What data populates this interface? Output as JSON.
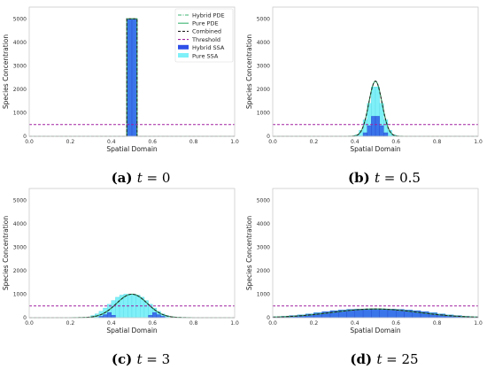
{
  "chart_data": [
    {
      "type": "bar",
      "caption": {
        "label": "(a)",
        "var": "t",
        "eq": "= 0"
      },
      "xlabel": "Spatial Domain",
      "ylabel": "Species Concentration",
      "xlim": [
        0.0,
        1.0
      ],
      "ylim": [
        0,
        5500
      ],
      "xticks": [
        "0.0",
        "0.2",
        "0.4",
        "0.6",
        "0.8",
        "1.0"
      ],
      "yticks": [
        "0",
        "1000",
        "2000",
        "3000",
        "4000",
        "5000"
      ],
      "threshold": 500,
      "hybrid_pde": {
        "peak": 5000,
        "sigma": 0,
        "floor": 0
      },
      "hybrid_ssa_cells": [
        [
          0.475,
          0.5,
          5000
        ],
        [
          0.5,
          0.525,
          5000
        ]
      ],
      "pure_ssa_cells": [
        [
          0.475,
          0.5,
          5000
        ],
        [
          0.5,
          0.525,
          5000
        ]
      ],
      "legend": {
        "position": "top-right",
        "entries": [
          {
            "label": "Hybrid PDE",
            "color": "#3cb371",
            "style": "dashdot"
          },
          {
            "label": "Pure PDE",
            "color": "#3cb371",
            "style": "solid"
          },
          {
            "label": "Combined",
            "color": "#222222",
            "style": "dashed"
          },
          {
            "label": "Threshold",
            "color": "#a020a0",
            "style": "dashed"
          },
          {
            "label": "Hybrid SSA",
            "color": "#2f4fe8",
            "style": "patch"
          },
          {
            "label": "Pure SSA",
            "color": "#7ff0f8",
            "style": "patch"
          }
        ]
      }
    },
    {
      "type": "bar",
      "caption": {
        "label": "(b)",
        "var": "t",
        "eq": "= 0.5"
      },
      "xlabel": "Spatial Domain",
      "ylabel": "Species Concentration",
      "xlim": [
        0.0,
        1.0
      ],
      "ylim": [
        0,
        5500
      ],
      "xticks": [
        "0.0",
        "0.2",
        "0.4",
        "0.6",
        "0.8",
        "1.0"
      ],
      "yticks": [
        "0",
        "1000",
        "2000",
        "3000",
        "4000",
        "5000"
      ],
      "threshold": 500,
      "hybrid_pde": {
        "peak": 2350,
        "sigma": 0.032,
        "floor": 0
      },
      "hybrid_ssa_cells": [
        [
          0.44,
          0.46,
          150
        ],
        [
          0.46,
          0.48,
          450
        ],
        [
          0.48,
          0.5,
          850
        ],
        [
          0.5,
          0.52,
          850
        ],
        [
          0.52,
          0.54,
          450
        ],
        [
          0.54,
          0.56,
          150
        ]
      ],
      "pure_ssa_cells": [
        [
          0.4,
          0.42,
          60
        ],
        [
          0.42,
          0.44,
          250
        ],
        [
          0.44,
          0.46,
          700
        ],
        [
          0.46,
          0.48,
          1400
        ],
        [
          0.48,
          0.5,
          2100
        ],
        [
          0.5,
          0.52,
          2100
        ],
        [
          0.52,
          0.54,
          1400
        ],
        [
          0.54,
          0.56,
          700
        ],
        [
          0.56,
          0.58,
          250
        ],
        [
          0.58,
          0.6,
          60
        ]
      ]
    },
    {
      "type": "bar",
      "caption": {
        "label": "(c)",
        "var": "t",
        "eq": "= 3"
      },
      "xlabel": "Spatial Domain",
      "ylabel": "Species Concentration",
      "xlim": [
        0.0,
        1.0
      ],
      "ylim": [
        0,
        5500
      ],
      "xticks": [
        "0.0",
        "0.2",
        "0.4",
        "0.6",
        "0.8",
        "1.0"
      ],
      "yticks": [
        "0",
        "1000",
        "2000",
        "3000",
        "4000",
        "5000"
      ],
      "threshold": 500,
      "hybrid_pde": {
        "peak": 1000,
        "sigma": 0.075,
        "floor": 0
      },
      "hybrid_ssa_cells": [
        [
          0.34,
          0.36,
          60
        ],
        [
          0.36,
          0.38,
          130
        ],
        [
          0.38,
          0.4,
          220
        ],
        [
          0.4,
          0.42,
          100
        ],
        [
          0.58,
          0.6,
          100
        ],
        [
          0.6,
          0.62,
          220
        ],
        [
          0.62,
          0.64,
          130
        ],
        [
          0.64,
          0.66,
          60
        ]
      ],
      "pure_ssa_cells": [
        [
          0.3,
          0.32,
          90
        ],
        [
          0.32,
          0.34,
          160
        ],
        [
          0.34,
          0.36,
          270
        ],
        [
          0.36,
          0.38,
          410
        ],
        [
          0.38,
          0.4,
          570
        ],
        [
          0.4,
          0.42,
          730
        ],
        [
          0.42,
          0.44,
          870
        ],
        [
          0.44,
          0.46,
          960
        ],
        [
          0.46,
          0.48,
          1000
        ],
        [
          0.48,
          0.5,
          1000
        ],
        [
          0.5,
          0.52,
          1000
        ],
        [
          0.52,
          0.54,
          960
        ],
        [
          0.54,
          0.56,
          870
        ],
        [
          0.56,
          0.58,
          730
        ],
        [
          0.58,
          0.6,
          570
        ],
        [
          0.6,
          0.62,
          410
        ],
        [
          0.62,
          0.64,
          270
        ],
        [
          0.64,
          0.66,
          160
        ],
        [
          0.66,
          0.68,
          90
        ]
      ]
    },
    {
      "type": "bar",
      "caption": {
        "label": "(d)",
        "var": "t",
        "eq": "= 25"
      },
      "xlabel": "Spatial Domain",
      "ylabel": "Species Concentration",
      "xlim": [
        0.0,
        1.0
      ],
      "ylim": [
        0,
        5500
      ],
      "xticks": [
        "0.0",
        "0.2",
        "0.4",
        "0.6",
        "0.8",
        "1.0"
      ],
      "yticks": [
        "0",
        "1000",
        "2000",
        "3000",
        "4000",
        "5000"
      ],
      "threshold": 500,
      "hybrid_pde": {
        "peak": 370,
        "sigma": 0.21,
        "floor": 0
      },
      "hybrid_ssa_cells": [
        [
          0.0,
          0.04,
          30
        ],
        [
          0.04,
          0.08,
          50
        ],
        [
          0.08,
          0.12,
          80
        ],
        [
          0.12,
          0.16,
          110
        ],
        [
          0.16,
          0.2,
          150
        ],
        [
          0.2,
          0.24,
          200
        ],
        [
          0.24,
          0.28,
          250
        ],
        [
          0.28,
          0.32,
          290
        ],
        [
          0.32,
          0.36,
          320
        ],
        [
          0.36,
          0.4,
          345
        ],
        [
          0.4,
          0.44,
          360
        ],
        [
          0.44,
          0.48,
          370
        ],
        [
          0.48,
          0.52,
          370
        ],
        [
          0.52,
          0.56,
          370
        ],
        [
          0.56,
          0.6,
          360
        ],
        [
          0.6,
          0.64,
          345
        ],
        [
          0.64,
          0.68,
          320
        ],
        [
          0.68,
          0.72,
          290
        ],
        [
          0.72,
          0.76,
          250
        ],
        [
          0.76,
          0.8,
          200
        ],
        [
          0.8,
          0.84,
          150
        ],
        [
          0.84,
          0.88,
          110
        ],
        [
          0.88,
          0.92,
          80
        ],
        [
          0.92,
          0.96,
          50
        ],
        [
          0.96,
          1.0,
          30
        ]
      ],
      "pure_ssa_cells": [
        [
          0.0,
          0.04,
          40
        ],
        [
          0.04,
          0.08,
          60
        ],
        [
          0.08,
          0.12,
          90
        ],
        [
          0.12,
          0.16,
          120
        ],
        [
          0.16,
          0.2,
          165
        ],
        [
          0.2,
          0.24,
          215
        ],
        [
          0.24,
          0.28,
          260
        ],
        [
          0.28,
          0.32,
          300
        ],
        [
          0.32,
          0.36,
          330
        ],
        [
          0.36,
          0.4,
          355
        ],
        [
          0.4,
          0.44,
          370
        ],
        [
          0.44,
          0.48,
          375
        ],
        [
          0.48,
          0.52,
          380
        ],
        [
          0.52,
          0.56,
          375
        ],
        [
          0.56,
          0.6,
          370
        ],
        [
          0.6,
          0.64,
          355
        ],
        [
          0.64,
          0.68,
          330
        ],
        [
          0.68,
          0.72,
          300
        ],
        [
          0.72,
          0.76,
          260
        ],
        [
          0.76,
          0.8,
          215
        ],
        [
          0.8,
          0.84,
          165
        ],
        [
          0.84,
          0.88,
          120
        ],
        [
          0.88,
          0.92,
          90
        ],
        [
          0.92,
          0.96,
          60
        ],
        [
          0.96,
          1.0,
          40
        ]
      ]
    }
  ]
}
